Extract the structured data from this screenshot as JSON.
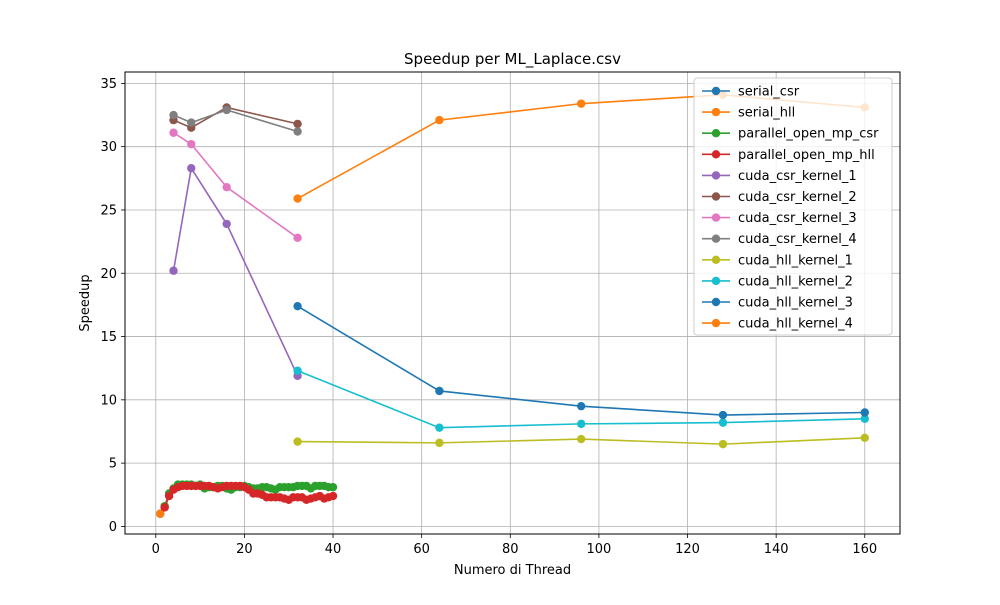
{
  "chart_data": {
    "type": "line",
    "title": "Speedup per ML_Laplace.csv",
    "xlabel": "Numero di Thread",
    "ylabel": "Speedup",
    "xlim": [
      -6.95,
      167.95
    ],
    "ylim": [
      -0.6,
      35.9
    ],
    "xticks": [
      0,
      20,
      40,
      60,
      80,
      100,
      120,
      140,
      160
    ],
    "yticks": [
      0,
      5,
      10,
      15,
      20,
      25,
      30,
      35
    ],
    "grid": true,
    "legend_position": "top-right",
    "series": [
      {
        "name": "serial_csr",
        "color": "#1f77b4",
        "x": [
          1
        ],
        "y": [
          1.0
        ]
      },
      {
        "name": "serial_hll",
        "color": "#ff7f0e",
        "x": [
          1
        ],
        "y": [
          1.0
        ]
      },
      {
        "name": "parallel_open_mp_csr",
        "color": "#2ca02c",
        "x": [
          2,
          3,
          4,
          5,
          6,
          7,
          8,
          9,
          10,
          11,
          12,
          13,
          14,
          15,
          16,
          17,
          18,
          19,
          20,
          21,
          22,
          23,
          24,
          25,
          26,
          27,
          28,
          29,
          30,
          31,
          32,
          33,
          34,
          35,
          36,
          37,
          38,
          39,
          40
        ],
        "y": [
          1.6,
          2.6,
          3.0,
          3.3,
          3.3,
          3.3,
          3.3,
          3.2,
          3.3,
          3.0,
          3.1,
          3.1,
          3.2,
          3.2,
          3.0,
          2.9,
          3.1,
          3.1,
          3.2,
          3.1,
          3.0,
          3.0,
          3.1,
          3.1,
          3.0,
          2.9,
          3.1,
          3.1,
          3.1,
          3.1,
          3.2,
          3.2,
          3.2,
          3.0,
          3.2,
          3.2,
          3.2,
          3.1,
          3.1
        ]
      },
      {
        "name": "parallel_open_mp_hll",
        "color": "#d62728",
        "x": [
          2,
          3,
          4,
          5,
          6,
          7,
          8,
          9,
          10,
          11,
          12,
          13,
          14,
          15,
          16,
          17,
          18,
          19,
          20,
          21,
          22,
          23,
          24,
          25,
          26,
          27,
          28,
          29,
          30,
          31,
          32,
          33,
          34,
          35,
          36,
          37,
          38,
          39,
          40
        ],
        "y": [
          1.5,
          2.4,
          2.9,
          3.1,
          3.2,
          3.2,
          3.2,
          3.2,
          3.2,
          3.2,
          3.2,
          3.1,
          3.0,
          3.1,
          3.2,
          3.2,
          3.2,
          3.2,
          3.1,
          2.9,
          2.6,
          2.6,
          2.5,
          2.3,
          2.3,
          2.3,
          2.3,
          2.2,
          2.1,
          2.3,
          2.3,
          2.3,
          2.1,
          2.2,
          2.3,
          2.4,
          2.2,
          2.3,
          2.4
        ]
      },
      {
        "name": "cuda_csr_kernel_1",
        "color": "#9467bd",
        "x": [
          4,
          8,
          16,
          32
        ],
        "y": [
          20.2,
          28.3,
          23.9,
          11.9
        ]
      },
      {
        "name": "cuda_csr_kernel_2",
        "color": "#8c564b",
        "x": [
          4,
          8,
          16,
          32
        ],
        "y": [
          32.1,
          31.5,
          33.1,
          31.8
        ]
      },
      {
        "name": "cuda_csr_kernel_3",
        "color": "#e377c2",
        "x": [
          4,
          8,
          16,
          32
        ],
        "y": [
          31.1,
          30.2,
          26.8,
          22.8
        ]
      },
      {
        "name": "cuda_csr_kernel_4",
        "color": "#7f7f7f",
        "x": [
          4,
          8,
          16,
          32
        ],
        "y": [
          32.5,
          31.9,
          32.9,
          31.2
        ]
      },
      {
        "name": "cuda_hll_kernel_1",
        "color": "#bcbd22",
        "x": [
          32,
          64,
          96,
          128,
          160
        ],
        "y": [
          6.7,
          6.6,
          6.9,
          6.5,
          7.0
        ]
      },
      {
        "name": "cuda_hll_kernel_2",
        "color": "#17becf",
        "x": [
          32,
          64,
          96,
          128,
          160
        ],
        "y": [
          12.3,
          7.8,
          8.1,
          8.2,
          8.5
        ]
      },
      {
        "name": "cuda_hll_kernel_3",
        "color": "#1f77b4",
        "x": [
          32,
          64,
          96,
          128,
          160
        ],
        "y": [
          17.4,
          10.7,
          9.5,
          8.8,
          9.0
        ]
      },
      {
        "name": "cuda_hll_kernel_4",
        "color": "#ff7f0e",
        "x": [
          32,
          64,
          96,
          128,
          160
        ],
        "y": [
          25.9,
          32.1,
          33.4,
          34.1,
          33.1
        ]
      }
    ]
  }
}
